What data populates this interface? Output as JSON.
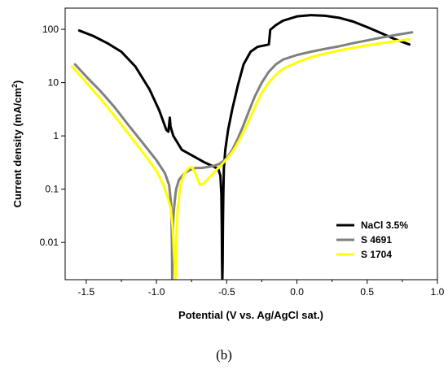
{
  "chart_data": {
    "type": "line",
    "title": "",
    "xlabel": "Potential (V vs. Ag/AgCl sat.)",
    "ylabel_main": "Current density (mA/cm",
    "ylabel_sup": "2",
    "ylabel_close": ")",
    "xlim": [
      -1.65,
      1.0
    ],
    "ylim": [
      0.002,
      250
    ],
    "yscale": "log",
    "grid": false,
    "legend_position": "bottom-right",
    "panel_label": "(b)",
    "x_ticks": [
      -1.5,
      -1.0,
      -0.5,
      0.0,
      0.5,
      1.0
    ],
    "x_tick_labels": [
      "-1.5",
      "-1.0",
      "-0.5",
      "0.0",
      "0.5",
      "1.0"
    ],
    "y_ticks": [
      0.01,
      0.1,
      1,
      10,
      100
    ],
    "y_tick_labels": [
      "0.01",
      "0.1",
      "1",
      "10",
      "100"
    ],
    "series": [
      {
        "name": "NaCl 3.5%",
        "color": "#000000",
        "x": [
          -1.55,
          -1.45,
          -1.35,
          -1.25,
          -1.15,
          -1.05,
          -0.98,
          -0.93,
          -0.915,
          -0.905,
          -0.9,
          -0.88,
          -0.82,
          -0.74,
          -0.66,
          -0.6,
          -0.56,
          -0.545,
          -0.538,
          -0.535,
          -0.533,
          -0.531,
          -0.529,
          -0.527,
          -0.524,
          -0.52,
          -0.51,
          -0.49,
          -0.46,
          -0.42,
          -0.38,
          -0.33,
          -0.28,
          -0.23,
          -0.2,
          -0.19,
          -0.15,
          -0.1,
          0.0,
          0.1,
          0.2,
          0.3,
          0.4,
          0.5,
          0.6,
          0.7,
          0.8
        ],
        "y": [
          95,
          75,
          55,
          38,
          20,
          7.5,
          3,
          1.3,
          1.2,
          2.2,
          1.5,
          1.0,
          0.55,
          0.42,
          0.32,
          0.27,
          0.24,
          0.18,
          0.08,
          0.02,
          0.004,
          0.002,
          0.004,
          0.02,
          0.08,
          0.25,
          0.55,
          1.3,
          3.2,
          9,
          22,
          38,
          47,
          50,
          52,
          98,
          120,
          145,
          175,
          185,
          180,
          165,
          140,
          110,
          85,
          65,
          52
        ]
      },
      {
        "name": "S 4691",
        "color": "#808080",
        "x": [
          -1.58,
          -1.5,
          -1.4,
          -1.3,
          -1.2,
          -1.1,
          -1.0,
          -0.94,
          -0.91,
          -0.895,
          -0.89,
          -0.888,
          -0.885,
          -0.88,
          -0.87,
          -0.86,
          -0.84,
          -0.8,
          -0.76,
          -0.72,
          -0.68,
          -0.64,
          -0.6,
          -0.55,
          -0.5,
          -0.46,
          -0.42,
          -0.38,
          -0.34,
          -0.3,
          -0.25,
          -0.2,
          -0.15,
          -0.1,
          0.0,
          0.1,
          0.2,
          0.3,
          0.4,
          0.5,
          0.6,
          0.7,
          0.82
        ],
        "y": [
          22,
          13,
          7,
          3.5,
          1.6,
          0.75,
          0.35,
          0.2,
          0.12,
          0.05,
          0.01,
          0.002,
          0.01,
          0.03,
          0.06,
          0.1,
          0.15,
          0.2,
          0.23,
          0.25,
          0.25,
          0.26,
          0.27,
          0.3,
          0.38,
          0.55,
          0.9,
          1.6,
          3,
          5.5,
          10,
          16,
          22,
          27,
          33,
          38,
          43,
          48,
          55,
          62,
          70,
          78,
          88
        ]
      },
      {
        "name": "S 1704",
        "color": "#ffff00",
        "x": [
          -1.6,
          -1.5,
          -1.4,
          -1.3,
          -1.2,
          -1.1,
          -1.0,
          -0.95,
          -0.92,
          -0.9,
          -0.885,
          -0.875,
          -0.868,
          -0.865,
          -0.863,
          -0.86,
          -0.85,
          -0.83,
          -0.8,
          -0.77,
          -0.75,
          -0.73,
          -0.71,
          -0.69,
          -0.66,
          -0.62,
          -0.58,
          -0.54,
          -0.5,
          -0.46,
          -0.42,
          -0.38,
          -0.34,
          -0.3,
          -0.25,
          -0.2,
          -0.15,
          -0.1,
          0.0,
          0.1,
          0.2,
          0.3,
          0.4,
          0.5,
          0.6,
          0.7,
          0.8
        ],
        "y": [
          20,
          10,
          5,
          2.4,
          1.1,
          0.5,
          0.22,
          0.12,
          0.07,
          0.045,
          0.02,
          0.006,
          0.003,
          0.002,
          0.003,
          0.01,
          0.04,
          0.12,
          0.2,
          0.25,
          0.26,
          0.22,
          0.16,
          0.12,
          0.13,
          0.17,
          0.22,
          0.28,
          0.37,
          0.5,
          0.75,
          1.2,
          2,
          3.5,
          6.5,
          10,
          14,
          18,
          24,
          30,
          35,
          40,
          45,
          50,
          55,
          60,
          65
        ]
      }
    ]
  }
}
